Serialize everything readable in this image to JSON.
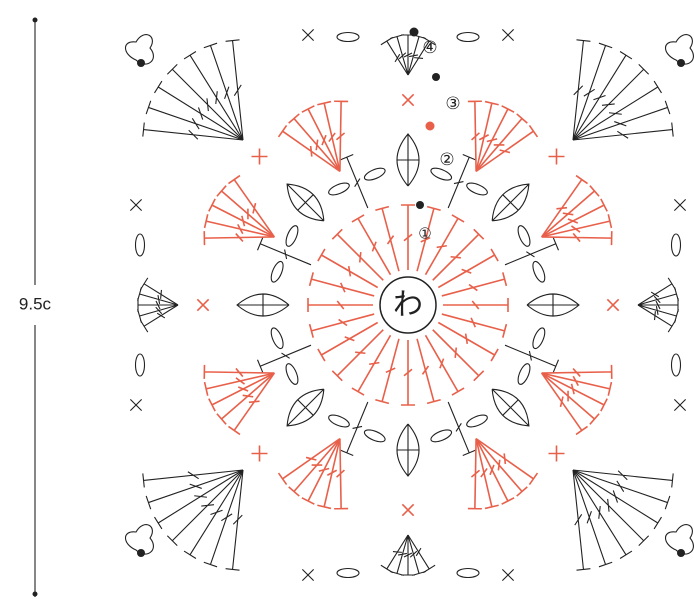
{
  "dimension_label": "9.5c",
  "center_label": "わ",
  "rounds": [
    {
      "label": "①"
    },
    {
      "label": "②"
    },
    {
      "label": "③"
    },
    {
      "label": "④"
    }
  ]
}
